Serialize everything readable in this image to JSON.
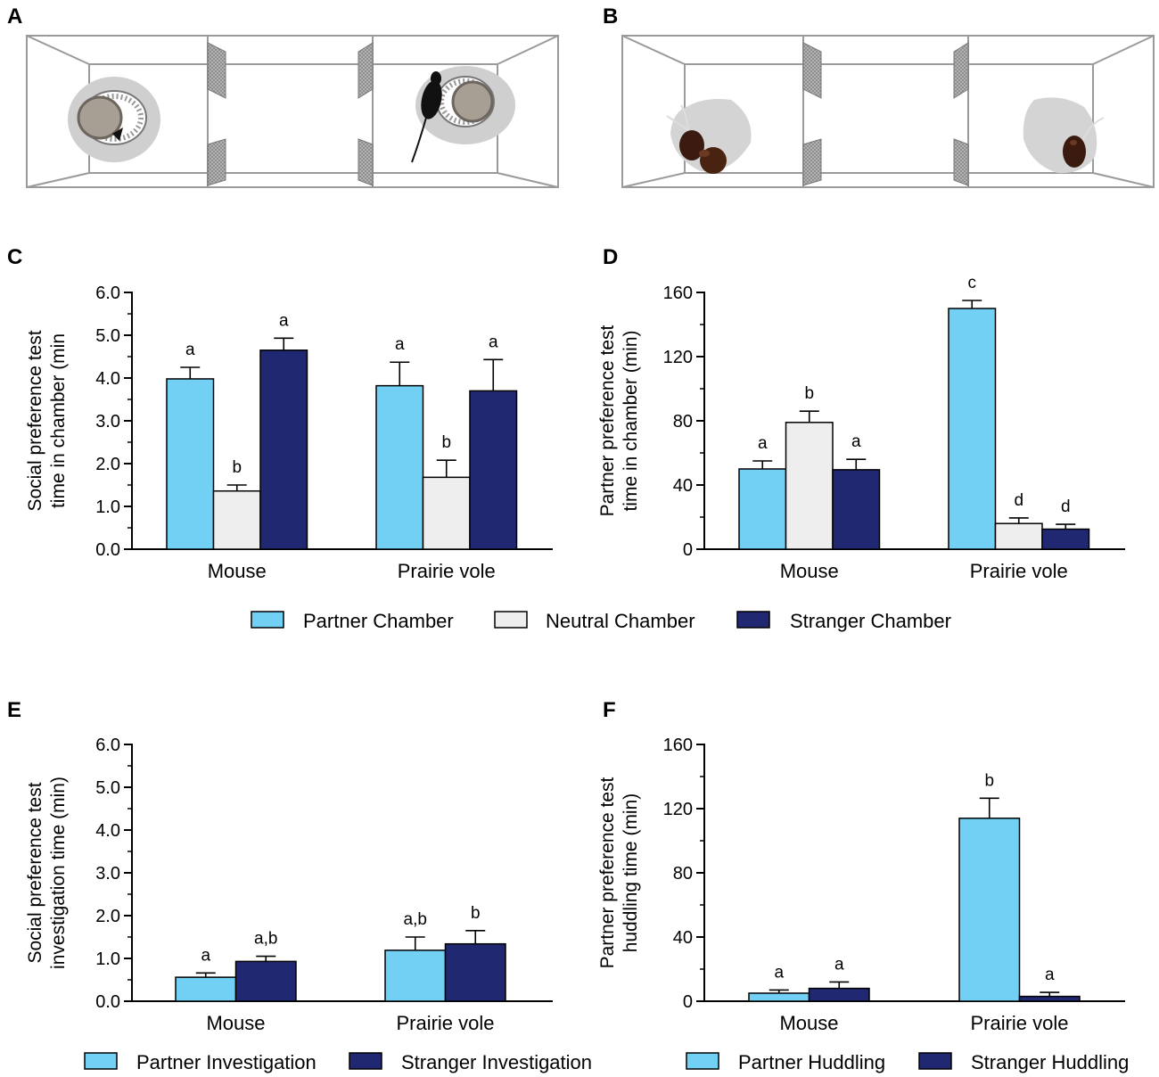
{
  "colors": {
    "partner": "#72d0f5",
    "neutral": "#eeeeee",
    "stranger": "#1f2870",
    "axis": "#000000",
    "box": "#9a9a9a"
  },
  "panels": {
    "A": {
      "letter": "A"
    },
    "B": {
      "letter": "B"
    }
  },
  "legends": {
    "chamber": [
      "Partner Chamber",
      "Neutral Chamber",
      "Stranger Chamber"
    ],
    "investigation": [
      "Partner Investigation",
      "Stranger Investigation"
    ],
    "huddling": [
      "Partner Huddling",
      "Stranger Huddling"
    ]
  },
  "chart_data": [
    {
      "id": "C",
      "letter": "C",
      "type": "bar",
      "ylabel": [
        "Social preference test",
        "time in chamber (min"
      ],
      "ylim": [
        0,
        6
      ],
      "yticks": [
        "0.0",
        "1.0",
        "2.0",
        "3.0",
        "4.0",
        "5.0",
        "6.0"
      ],
      "categories": [
        "Mouse",
        "Prairie vole"
      ],
      "series": [
        {
          "name": "Partner Chamber",
          "color": "partner",
          "values": [
            3.98,
            3.82
          ],
          "errors": [
            0.27,
            0.55
          ],
          "labels": [
            "a",
            "a"
          ]
        },
        {
          "name": "Neutral Chamber",
          "color": "neutral",
          "values": [
            1.36,
            1.68
          ],
          "errors": [
            0.14,
            0.4
          ],
          "labels": [
            "b",
            "b"
          ]
        },
        {
          "name": "Stranger Chamber",
          "color": "stranger",
          "values": [
            4.65,
            3.7
          ],
          "errors": [
            0.28,
            0.73
          ],
          "labels": [
            "a",
            "a"
          ]
        }
      ]
    },
    {
      "id": "D",
      "letter": "D",
      "type": "bar",
      "ylabel": [
        "Partner preference test",
        "time in chamber (min)"
      ],
      "ylim": [
        0,
        160
      ],
      "yticks": [
        "0",
        "40",
        "80",
        "120",
        "160"
      ],
      "categories": [
        "Mouse",
        "Prairie vole"
      ],
      "series": [
        {
          "name": "Partner Chamber",
          "color": "partner",
          "values": [
            50,
            150
          ],
          "errors": [
            5,
            5
          ],
          "labels": [
            "a",
            "c"
          ]
        },
        {
          "name": "Neutral Chamber",
          "color": "neutral",
          "values": [
            79,
            16
          ],
          "errors": [
            7,
            3.5
          ],
          "labels": [
            "b",
            "d"
          ]
        },
        {
          "name": "Stranger Chamber",
          "color": "stranger",
          "values": [
            49.5,
            12.5
          ],
          "errors": [
            6.5,
            3
          ],
          "labels": [
            "a",
            "d"
          ]
        }
      ]
    },
    {
      "id": "E",
      "letter": "E",
      "type": "bar",
      "ylabel": [
        "Social preference test",
        "investigation time (min)"
      ],
      "ylim": [
        0,
        6
      ],
      "yticks": [
        "0.0",
        "1.0",
        "2.0",
        "3.0",
        "4.0",
        "5.0",
        "6.0"
      ],
      "categories": [
        "Mouse",
        "Prairie vole"
      ],
      "series": [
        {
          "name": "Partner Investigation",
          "color": "partner",
          "values": [
            0.56,
            1.19
          ],
          "errors": [
            0.1,
            0.31
          ],
          "labels": [
            "a",
            "a,b"
          ]
        },
        {
          "name": "Stranger Investigation",
          "color": "stranger",
          "values": [
            0.93,
            1.34
          ],
          "errors": [
            0.12,
            0.31
          ],
          "labels": [
            "a,b",
            "b"
          ]
        }
      ]
    },
    {
      "id": "F",
      "letter": "F",
      "type": "bar",
      "ylabel": [
        "Partner preference test",
        "huddling time (min)"
      ],
      "ylim": [
        0,
        160
      ],
      "yticks": [
        "0",
        "40",
        "80",
        "120",
        "160"
      ],
      "categories": [
        "Mouse",
        "Prairie vole"
      ],
      "series": [
        {
          "name": "Partner Huddling",
          "color": "partner",
          "values": [
            5,
            114
          ],
          "errors": [
            2,
            12.5
          ],
          "labels": [
            "a",
            "b"
          ]
        },
        {
          "name": "Stranger Huddling",
          "color": "stranger",
          "values": [
            8,
            3
          ],
          "errors": [
            4,
            2.5
          ],
          "labels": [
            "a",
            "a"
          ]
        }
      ]
    }
  ]
}
